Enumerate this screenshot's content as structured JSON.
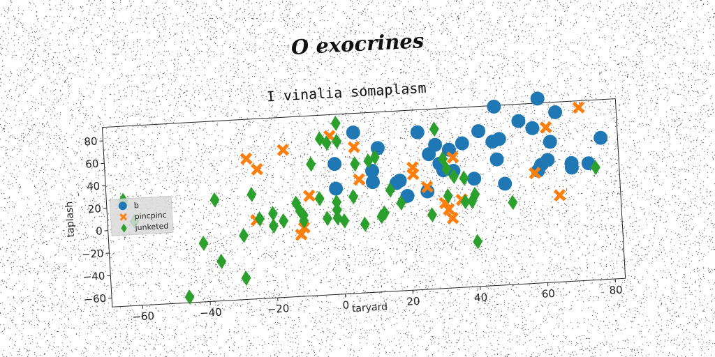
{
  "suptitle": "O exocrines",
  "chart_data": {
    "type": "scatter",
    "title": "I vinalia somaplasm",
    "xlabel": "taryard",
    "ylabel": "taplash",
    "xlim": [
      -69,
      83
    ],
    "ylim": [
      -68,
      92
    ],
    "xticks": [
      -60,
      -40,
      -20,
      0,
      20,
      40,
      60,
      80
    ],
    "yticks": [
      -60,
      -40,
      -20,
      0,
      20,
      40,
      60,
      80
    ],
    "grid": false,
    "legend_position": "center-left",
    "series": [
      {
        "name": "b",
        "color": "#1f77b4",
        "marker": "circle",
        "points": [
          [
            -1,
            26
          ],
          [
            -1,
            48
          ],
          [
            5,
            75
          ],
          [
            10,
            40
          ],
          [
            10,
            30
          ],
          [
            12,
            60
          ],
          [
            17,
            28
          ],
          [
            20,
            16
          ],
          [
            24,
            72
          ],
          [
            26,
            19
          ],
          [
            27,
            52
          ],
          [
            29,
            60
          ],
          [
            30,
            43
          ],
          [
            31,
            37
          ],
          [
            33,
            55
          ],
          [
            34,
            36
          ],
          [
            37,
            60
          ],
          [
            40,
            28
          ],
          [
            42,
            70
          ],
          [
            46,
            60
          ],
          [
            48,
            62
          ],
          [
            47,
            44
          ],
          [
            49,
            22
          ],
          [
            54,
            77
          ],
          [
            58,
            70
          ],
          [
            60,
            96
          ],
          [
            59,
            32
          ],
          [
            60,
            37
          ],
          [
            62,
            41
          ],
          [
            63,
            57
          ],
          [
            65,
            83
          ],
          [
            69,
            33
          ],
          [
            69,
            37
          ],
          [
            74,
            36
          ],
          [
            78,
            58
          ],
          [
            47,
            91
          ],
          [
            18,
            30
          ]
        ]
      },
      {
        "name": "pincpinc",
        "color": "#ff7f0e",
        "marker": "x",
        "points": [
          [
            -27,
            57
          ],
          [
            -24,
            47
          ],
          [
            -16,
            63
          ],
          [
            -25,
            2
          ],
          [
            -9,
            21
          ],
          [
            -11,
            -7
          ],
          [
            -12,
            -13
          ],
          [
            -2,
            73
          ],
          [
            5,
            62
          ],
          [
            6,
            33
          ],
          [
            22,
            35
          ],
          [
            22,
            41
          ],
          [
            26,
            23
          ],
          [
            31,
            8
          ],
          [
            32,
            2
          ],
          [
            33,
            -6
          ],
          [
            34,
            48
          ],
          [
            36,
            10
          ],
          [
            58,
            30
          ],
          [
            62,
            70
          ],
          [
            65,
            9
          ],
          [
            72,
            86
          ]
        ]
      },
      {
        "name": "junketed",
        "color": "#2ca02c",
        "marker": "diamond",
        "points": [
          [
            -64,
            26
          ],
          [
            -61,
            7
          ],
          [
            -46,
            -63
          ],
          [
            -41,
            -16
          ],
          [
            -37,
            22
          ],
          [
            -36,
            -33
          ],
          [
            -29,
            -11
          ],
          [
            -29,
            -49
          ],
          [
            -26,
            25
          ],
          [
            -24,
            3
          ],
          [
            -20,
            7
          ],
          [
            -20,
            -4
          ],
          [
            -17,
            0
          ],
          [
            -13,
            15
          ],
          [
            -12,
            8
          ],
          [
            -11,
            4
          ],
          [
            -11,
            -1
          ],
          [
            -8,
            49
          ],
          [
            -6,
            18
          ],
          [
            -5,
            71
          ],
          [
            -4,
            0
          ],
          [
            -3,
            67
          ],
          [
            -1,
            7
          ],
          [
            -1,
            14
          ],
          [
            -1,
            0
          ],
          [
            0,
            84
          ],
          [
            0,
            68
          ],
          [
            1,
            -3
          ],
          [
            4,
            18
          ],
          [
            5,
            47
          ],
          [
            7,
            -7
          ],
          [
            9,
            49
          ],
          [
            11,
            52
          ],
          [
            12,
            -1
          ],
          [
            13,
            2
          ],
          [
            15,
            22
          ],
          [
            18,
            10
          ],
          [
            27,
            -2
          ],
          [
            29,
            74
          ],
          [
            31,
            47
          ],
          [
            32,
            14
          ],
          [
            32,
            38
          ],
          [
            34,
            31
          ],
          [
            37,
            8
          ],
          [
            37,
            29
          ],
          [
            39,
            8
          ],
          [
            40,
            14
          ],
          [
            40,
            -28
          ],
          [
            51,
            5
          ],
          [
            76,
            32
          ]
        ]
      }
    ],
    "legend": [
      "b",
      "pincpinc",
      "junketed"
    ]
  }
}
